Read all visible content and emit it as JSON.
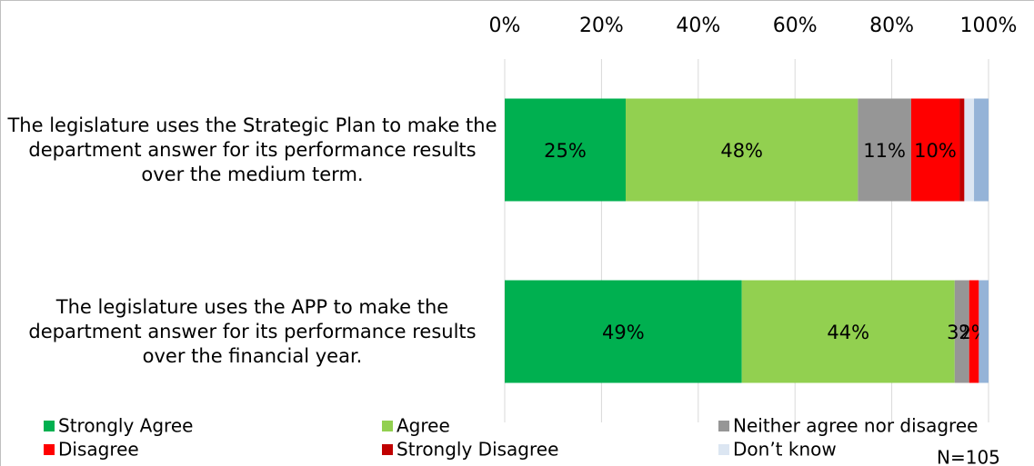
{
  "chart_data": {
    "type": "stacked_bar_horizontal",
    "categories": [
      "The legislature uses the Strategic Plan to make the department answer for its performance results over the medium term.",
      "The legislature uses the APP to make the department answer for its performance results over the financial year."
    ],
    "series": [
      {
        "name": "Strongly Agree",
        "color": "#00b050",
        "values": [
          25,
          49
        ],
        "value_labels": [
          "25%",
          "49%"
        ]
      },
      {
        "name": "Agree",
        "color": "#92d050",
        "values": [
          48,
          44
        ],
        "value_labels": [
          "48%",
          "44%"
        ]
      },
      {
        "name": "Neither agree nor disagree",
        "color": "#969696",
        "values": [
          11,
          3
        ],
        "value_labels": [
          "11%",
          "3%"
        ]
      },
      {
        "name": "Disagree",
        "color": "#ff0000",
        "values": [
          10,
          2
        ],
        "value_labels": [
          "10%",
          "2%"
        ]
      },
      {
        "name": "Strongly Disagree",
        "color": "#c00000",
        "values": [
          1,
          0
        ]
      },
      {
        "name": "Don’t know",
        "color": "#dce6f2",
        "values": [
          2,
          0
        ]
      },
      {
        "name": null,
        "color": "#95b3d7",
        "values": [
          3,
          2
        ]
      }
    ],
    "xlim": [
      0,
      100
    ],
    "xticks": [
      {
        "value": 0,
        "label": "0%"
      },
      {
        "value": 20,
        "label": "20%"
      },
      {
        "value": 40,
        "label": "40%"
      },
      {
        "value": 60,
        "label": "60%"
      },
      {
        "value": 80,
        "label": "80%"
      },
      {
        "value": 100,
        "label": "100%"
      }
    ],
    "grid": true,
    "annotation": "N=105"
  }
}
